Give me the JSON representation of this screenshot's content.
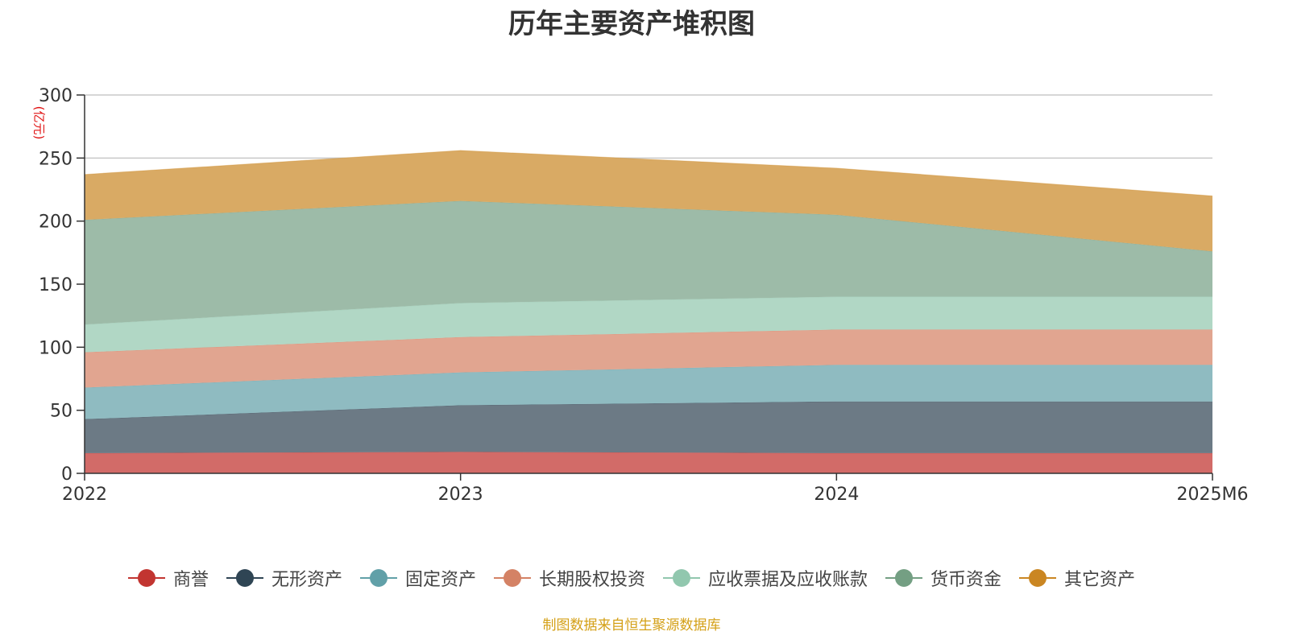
{
  "chart_data": {
    "type": "area",
    "stacked": true,
    "title": "历年主要资产堆积图",
    "ylabel": "(亿元)",
    "xlabel": "",
    "categories": [
      "2022",
      "2023",
      "2024",
      "2025M6"
    ],
    "ylim": [
      0,
      300
    ],
    "yticks": [
      0,
      50,
      100,
      150,
      200,
      250,
      300
    ],
    "grid": true,
    "legend_position": "bottom-center",
    "series": [
      {
        "name": "商誉",
        "color": "#c23531",
        "fill": "#d26b68",
        "values": [
          16,
          17,
          16,
          16
        ]
      },
      {
        "name": "无形资产",
        "color": "#2f4554",
        "fill": "#6c7a85",
        "values": [
          27,
          37,
          41,
          41
        ]
      },
      {
        "name": "固定资产",
        "color": "#61a0a8",
        "fill": "#8fbbc1",
        "values": [
          25,
          26,
          29,
          29
        ]
      },
      {
        "name": "长期股权投资",
        "color": "#d48265",
        "fill": "#e1a590",
        "values": [
          28,
          28,
          28,
          28
        ]
      },
      {
        "name": "应收票据及应收账款",
        "color": "#91c7ae",
        "fill": "#b1d7c5",
        "values": [
          22,
          27,
          26,
          26
        ]
      },
      {
        "name": "货币资金",
        "color": "#749f83",
        "fill": "#9dbba8",
        "values": [
          83,
          81,
          65,
          36
        ]
      },
      {
        "name": "其它资产",
        "color": "#ca8622",
        "fill": "#d9aa64",
        "values": [
          36,
          40,
          37,
          44
        ]
      }
    ]
  },
  "source_note": "制图数据来自恒生聚源数据库"
}
